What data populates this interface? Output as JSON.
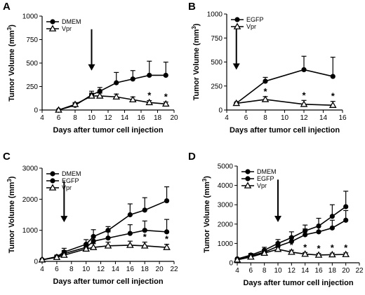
{
  "chart_data": [
    {
      "panel": "A",
      "type": "line",
      "xlabel": "Days after tumor cell injection",
      "ylabel": "Tumor Volume (mm³)",
      "xlim": [
        4,
        20
      ],
      "ylim": [
        0,
        1000
      ],
      "xticks": [
        4,
        6,
        8,
        10,
        12,
        14,
        16,
        18,
        20
      ],
      "yticks": [
        0,
        250,
        500,
        750,
        1000
      ],
      "legend_position": "top-left",
      "series": [
        {
          "name": "DMEM",
          "marker": "circle",
          "x": [
            6,
            8,
            10,
            11,
            13,
            15,
            17,
            19
          ],
          "y": [
            0,
            50,
            160,
            200,
            290,
            330,
            370,
            370
          ],
          "err": [
            0,
            20,
            40,
            40,
            110,
            90,
            150,
            140
          ]
        },
        {
          "name": "Vpr",
          "marker": "triangle",
          "x": [
            6,
            8,
            10,
            11,
            13,
            15,
            17,
            19
          ],
          "y": [
            0,
            60,
            150,
            150,
            140,
            110,
            80,
            65
          ],
          "err": [
            0,
            20,
            30,
            30,
            30,
            30,
            20,
            20
          ]
        }
      ],
      "arrow_x": 10,
      "significance": [
        {
          "x": 17,
          "label": "*"
        },
        {
          "x": 19,
          "label": "*"
        }
      ]
    },
    {
      "panel": "B",
      "type": "line",
      "xlabel": "Days after tumor cell injection",
      "ylabel": "Tumor Volume (mm³)",
      "xlim": [
        4,
        16
      ],
      "ylim": [
        0,
        1000
      ],
      "xticks": [
        4,
        6,
        8,
        10,
        12,
        14,
        16
      ],
      "yticks": [
        0,
        250,
        500,
        750,
        1000
      ],
      "legend_position": "top-left",
      "series": [
        {
          "name": "EGFP",
          "marker": "circle",
          "x": [
            5,
            8,
            12,
            15
          ],
          "y": [
            70,
            300,
            420,
            350
          ],
          "err": [
            0,
            40,
            140,
            200
          ]
        },
        {
          "name": "Vpr",
          "marker": "triangle",
          "x": [
            5,
            8,
            12,
            15
          ],
          "y": [
            70,
            110,
            60,
            50
          ],
          "err": [
            0,
            30,
            40,
            40
          ]
        }
      ],
      "arrow_x": 5,
      "significance": [
        {
          "x": 8,
          "label": "*"
        },
        {
          "x": 12,
          "label": "*"
        },
        {
          "x": 15,
          "label": "*"
        }
      ]
    },
    {
      "panel": "C",
      "type": "line",
      "xlabel": "Days after tumor cell injection",
      "ylabel": "Tumor Volume (mm³)",
      "xlim": [
        4,
        22
      ],
      "ylim": [
        0,
        3000
      ],
      "xticks": [
        4,
        6,
        8,
        10,
        12,
        14,
        16,
        18,
        20,
        22
      ],
      "yticks": [
        0,
        1000,
        2000,
        3000
      ],
      "legend_position": "top-left",
      "series": [
        {
          "name": "DMEM",
          "marker": "circle",
          "x": [
            4,
            6,
            7,
            10,
            11,
            13,
            16,
            18,
            21
          ],
          "y": [
            50,
            150,
            300,
            550,
            800,
            1000,
            1500,
            1650,
            1950
          ],
          "err": [
            0,
            50,
            120,
            150,
            220,
            120,
            350,
            400,
            450
          ]
        },
        {
          "name": "EGFP",
          "marker": "circle",
          "x": [
            4,
            6,
            7,
            10,
            11,
            13,
            16,
            18,
            21
          ],
          "y": [
            50,
            150,
            250,
            450,
            650,
            750,
            900,
            1000,
            950
          ],
          "err": [
            0,
            50,
            100,
            120,
            180,
            200,
            280,
            300,
            400
          ]
        },
        {
          "name": "Vpr",
          "marker": "triangle",
          "x": [
            4,
            6,
            7,
            10,
            11,
            13,
            16,
            18,
            21
          ],
          "y": [
            50,
            130,
            200,
            400,
            450,
            500,
            520,
            500,
            450
          ],
          "err": [
            0,
            40,
            80,
            100,
            120,
            120,
            130,
            120,
            100
          ]
        }
      ],
      "arrow_x": 7,
      "significance": [
        {
          "x": 18,
          "label": "*"
        },
        {
          "x": 21,
          "label": "*"
        }
      ]
    },
    {
      "panel": "D",
      "type": "line",
      "xlabel": "Days after tumor cell injection",
      "ylabel": "Tumor Volume (mm³)",
      "xlim": [
        4,
        22
      ],
      "ylim": [
        0,
        5000
      ],
      "xticks": [
        4,
        6,
        8,
        10,
        12,
        14,
        16,
        18,
        20,
        22
      ],
      "yticks": [
        0,
        1000,
        2000,
        3000,
        4000,
        5000
      ],
      "legend_position": "top-left",
      "series": [
        {
          "name": "DMEM",
          "marker": "circle",
          "x": [
            4,
            6,
            8,
            10,
            12,
            14,
            16,
            18,
            20
          ],
          "y": [
            200,
            400,
            650,
            1000,
            1300,
            1650,
            1900,
            2400,
            2900
          ],
          "err": [
            0,
            80,
            150,
            200,
            300,
            300,
            400,
            600,
            800
          ]
        },
        {
          "name": "EGFP",
          "marker": "circle",
          "x": [
            4,
            6,
            8,
            10,
            12,
            14,
            16,
            18,
            20
          ],
          "y": [
            150,
            350,
            550,
            850,
            1100,
            1450,
            1600,
            1800,
            2200
          ],
          "err": [
            0,
            80,
            120,
            200,
            250,
            300,
            300,
            400,
            500
          ]
        },
        {
          "name": "Vpr",
          "marker": "triangle",
          "x": [
            4,
            6,
            8,
            10,
            12,
            14,
            16,
            18,
            20
          ],
          "y": [
            150,
            300,
            500,
            700,
            550,
            450,
            400,
            420,
            430
          ],
          "err": [
            0,
            60,
            100,
            150,
            100,
            80,
            80,
            80,
            80
          ]
        }
      ],
      "arrow_x": 10,
      "significance": [
        {
          "x": 12,
          "label": "*"
        },
        {
          "x": 14,
          "label": "*"
        },
        {
          "x": 16,
          "label": "*"
        },
        {
          "x": 18,
          "label": "*"
        },
        {
          "x": 20,
          "label": "*"
        }
      ]
    }
  ]
}
